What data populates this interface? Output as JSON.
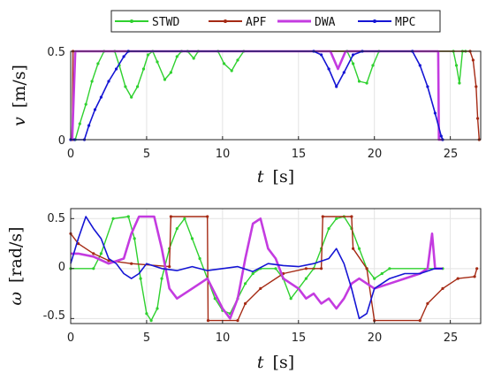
{
  "chart_data": [
    {
      "type": "line",
      "xlabel_var": "t",
      "xlabel_unit": "[s]",
      "ylabel_var": "v",
      "ylabel_unit": "[m/s]",
      "xlim": [
        0,
        27
      ],
      "ylim": [
        0,
        0.5
      ],
      "xticks": [
        "0",
        "5",
        "10",
        "15",
        "20",
        "25"
      ],
      "yticks": [
        "0",
        "0.5"
      ],
      "grid": true,
      "legend": {
        "position": "top",
        "entries": [
          "STWD",
          "APF",
          "DWA",
          "MPC"
        ]
      },
      "series": [
        {
          "name": "STWD",
          "color": "#2fd12f",
          "marker": "dot",
          "points": [
            [
              0,
              0
            ],
            [
              0.3,
              0
            ],
            [
              0.6,
              0.09
            ],
            [
              1.0,
              0.2
            ],
            [
              1.4,
              0.33
            ],
            [
              1.8,
              0.43
            ],
            [
              2.2,
              0.5
            ],
            [
              2.9,
              0.5
            ],
            [
              3.2,
              0.42
            ],
            [
              3.6,
              0.3
            ],
            [
              4.0,
              0.24
            ],
            [
              4.4,
              0.3
            ],
            [
              4.8,
              0.4
            ],
            [
              5.1,
              0.48
            ],
            [
              5.4,
              0.5
            ],
            [
              5.7,
              0.44
            ],
            [
              6.2,
              0.34
            ],
            [
              6.6,
              0.38
            ],
            [
              7.0,
              0.47
            ],
            [
              7.3,
              0.5
            ],
            [
              7.7,
              0.5
            ],
            [
              8.1,
              0.46
            ],
            [
              8.4,
              0.5
            ],
            [
              9.7,
              0.5
            ],
            [
              10.1,
              0.43
            ],
            [
              10.6,
              0.39
            ],
            [
              11.0,
              0.45
            ],
            [
              11.4,
              0.5
            ],
            [
              18.2,
              0.5
            ],
            [
              18.6,
              0.43
            ],
            [
              19.0,
              0.33
            ],
            [
              19.5,
              0.32
            ],
            [
              19.9,
              0.42
            ],
            [
              20.3,
              0.5
            ],
            [
              25.2,
              0.5
            ],
            [
              25.4,
              0.42
            ],
            [
              25.6,
              0.32
            ],
            [
              25.8,
              0.5
            ],
            [
              26.0,
              0.5
            ]
          ]
        },
        {
          "name": "APF",
          "color": "#a52a14",
          "marker": "dot",
          "points": [
            [
              0,
              0
            ],
            [
              0.1,
              0
            ],
            [
              0.15,
              0.5
            ],
            [
              26.3,
              0.5
            ],
            [
              26.5,
              0.45
            ],
            [
              26.7,
              0.3
            ],
            [
              26.8,
              0.12
            ],
            [
              26.9,
              0
            ]
          ]
        },
        {
          "name": "DWA",
          "color": "#c43be0",
          "marker": "none",
          "points": [
            [
              0,
              0
            ],
            [
              0.1,
              0
            ],
            [
              0.3,
              0.5
            ],
            [
              17.1,
              0.5
            ],
            [
              17.6,
              0.4
            ],
            [
              18.1,
              0.5
            ],
            [
              24.2,
              0.5
            ],
            [
              24.25,
              0
            ],
            [
              24.5,
              0
            ]
          ]
        },
        {
          "name": "MPC",
          "color": "#1515d4",
          "marker": "dot",
          "points": [
            [
              0,
              0
            ],
            [
              0.25,
              0
            ],
            [
              0.9,
              0
            ],
            [
              1.2,
              0.08
            ],
            [
              1.6,
              0.17
            ],
            [
              2.0,
              0.24
            ],
            [
              2.5,
              0.33
            ],
            [
              3.0,
              0.4
            ],
            [
              3.5,
              0.47
            ],
            [
              3.8,
              0.5
            ],
            [
              16.0,
              0.5
            ],
            [
              16.5,
              0.48
            ],
            [
              17.0,
              0.4
            ],
            [
              17.5,
              0.3
            ],
            [
              18.0,
              0.38
            ],
            [
              18.6,
              0.48
            ],
            [
              19.2,
              0.5
            ],
            [
              22.5,
              0.5
            ],
            [
              23.0,
              0.42
            ],
            [
              23.5,
              0.3
            ],
            [
              24.0,
              0.15
            ],
            [
              24.4,
              0.02
            ],
            [
              24.5,
              0
            ]
          ]
        }
      ]
    },
    {
      "type": "line",
      "xlabel_var": "t",
      "xlabel_unit": "[s]",
      "ylabel_var": "ω",
      "ylabel_unit": "[rad/s]",
      "xlim": [
        0,
        27
      ],
      "ylim": [
        -0.55,
        0.6
      ],
      "xticks": [
        "0",
        "5",
        "10",
        "15",
        "20",
        "25"
      ],
      "yticks": [
        "0.5",
        "0",
        "-0.5"
      ],
      "grid": true,
      "series": [
        {
          "name": "STWD",
          "color": "#2fd12f",
          "marker": "dot",
          "points": [
            [
              0,
              0
            ],
            [
              1.5,
              0
            ],
            [
              2.0,
              0.15
            ],
            [
              2.8,
              0.5
            ],
            [
              3.8,
              0.52
            ],
            [
              4.2,
              0.3
            ],
            [
              4.6,
              -0.1
            ],
            [
              5.0,
              -0.45
            ],
            [
              5.3,
              -0.52
            ],
            [
              5.7,
              -0.4
            ],
            [
              6.0,
              -0.1
            ],
            [
              6.5,
              0.2
            ],
            [
              7.0,
              0.4
            ],
            [
              7.5,
              0.5
            ],
            [
              8.0,
              0.3
            ],
            [
              8.5,
              0.1
            ],
            [
              9.0,
              -0.1
            ],
            [
              9.5,
              -0.3
            ],
            [
              10.0,
              -0.42
            ],
            [
              10.5,
              -0.45
            ],
            [
              11.0,
              -0.3
            ],
            [
              11.5,
              -0.15
            ],
            [
              12.0,
              -0.05
            ],
            [
              12.5,
              0.0
            ],
            [
              13.5,
              0.0
            ],
            [
              14.0,
              -0.1
            ],
            [
              14.5,
              -0.3
            ],
            [
              15.0,
              -0.2
            ],
            [
              15.5,
              -0.1
            ],
            [
              16.0,
              0.0
            ],
            [
              16.5,
              0.2
            ],
            [
              17.0,
              0.4
            ],
            [
              17.5,
              0.5
            ],
            [
              18.0,
              0.52
            ],
            [
              18.5,
              0.4
            ],
            [
              19.0,
              0.2
            ],
            [
              19.5,
              0.0
            ],
            [
              20.0,
              -0.1
            ],
            [
              20.5,
              -0.05
            ],
            [
              21.0,
              0.0
            ],
            [
              24.5,
              0.0
            ]
          ]
        },
        {
          "name": "APF",
          "color": "#a52a14",
          "marker": "dot",
          "points": [
            [
              0,
              0.35
            ],
            [
              0.5,
              0.25
            ],
            [
              1.5,
              0.15
            ],
            [
              2.5,
              0.08
            ],
            [
              4,
              0.05
            ],
            [
              6.5,
              0.02
            ],
            [
              6.6,
              0.52
            ],
            [
              9,
              0.52
            ],
            [
              9.05,
              -0.52
            ],
            [
              11,
              -0.52
            ],
            [
              11.5,
              -0.35
            ],
            [
              12.5,
              -0.2
            ],
            [
              14,
              -0.05
            ],
            [
              15.5,
              0.0
            ],
            [
              16.5,
              0.0
            ],
            [
              16.6,
              0.52
            ],
            [
              18.5,
              0.52
            ],
            [
              18.6,
              0.2
            ],
            [
              19.5,
              0.0
            ],
            [
              20,
              -0.52
            ],
            [
              23,
              -0.52
            ],
            [
              23.5,
              -0.35
            ],
            [
              24.5,
              -0.2
            ],
            [
              25.5,
              -0.1
            ],
            [
              26.6,
              -0.08
            ],
            [
              26.75,
              0.0
            ]
          ]
        },
        {
          "name": "DWA",
          "color": "#c43be0",
          "marker": "none",
          "points": [
            [
              0,
              0.15
            ],
            [
              0.5,
              0.15
            ],
            [
              1.5,
              0.12
            ],
            [
              2.5,
              0.05
            ],
            [
              3.5,
              0.1
            ],
            [
              4.0,
              0.35
            ],
            [
              4.5,
              0.52
            ],
            [
              5.5,
              0.52
            ],
            [
              6.0,
              0.2
            ],
            [
              6.5,
              -0.2
            ],
            [
              7.0,
              -0.3
            ],
            [
              8.0,
              -0.2
            ],
            [
              9.0,
              -0.1
            ],
            [
              9.5,
              -0.25
            ],
            [
              10.0,
              -0.4
            ],
            [
              10.5,
              -0.5
            ],
            [
              11.0,
              -0.3
            ],
            [
              11.5,
              0.1
            ],
            [
              12.0,
              0.45
            ],
            [
              12.5,
              0.5
            ],
            [
              13.0,
              0.2
            ],
            [
              13.5,
              0.1
            ],
            [
              14.0,
              -0.1
            ],
            [
              15.0,
              -0.2
            ],
            [
              15.5,
              -0.3
            ],
            [
              16.0,
              -0.25
            ],
            [
              16.5,
              -0.35
            ],
            [
              17.0,
              -0.3
            ],
            [
              17.5,
              -0.4
            ],
            [
              18.0,
              -0.3
            ],
            [
              18.5,
              -0.15
            ],
            [
              19.0,
              -0.1
            ],
            [
              20.0,
              -0.2
            ],
            [
              21.0,
              -0.15
            ],
            [
              22.0,
              -0.1
            ],
            [
              23.0,
              -0.05
            ],
            [
              23.5,
              0.0
            ],
            [
              23.8,
              0.35
            ],
            [
              24.0,
              0.0
            ],
            [
              24.5,
              0.0
            ]
          ]
        },
        {
          "name": "MPC",
          "color": "#1515d4",
          "marker": "none",
          "points": [
            [
              0,
              0.05
            ],
            [
              0.5,
              0.3
            ],
            [
              1.0,
              0.52
            ],
            [
              1.5,
              0.4
            ],
            [
              2.0,
              0.3
            ],
            [
              2.5,
              0.1
            ],
            [
              3.0,
              0.05
            ],
            [
              3.5,
              -0.05
            ],
            [
              4.0,
              -0.1
            ],
            [
              4.5,
              -0.05
            ],
            [
              5.0,
              0.05
            ],
            [
              6.0,
              0.0
            ],
            [
              7.0,
              -0.02
            ],
            [
              8.0,
              0.02
            ],
            [
              9.0,
              -0.02
            ],
            [
              10.0,
              0.0
            ],
            [
              11.0,
              0.02
            ],
            [
              12.0,
              -0.03
            ],
            [
              13.0,
              0.05
            ],
            [
              14.0,
              0.03
            ],
            [
              15.0,
              0.02
            ],
            [
              16.0,
              0.05
            ],
            [
              17.0,
              0.1
            ],
            [
              17.5,
              0.2
            ],
            [
              18.0,
              0.05
            ],
            [
              18.5,
              -0.2
            ],
            [
              19.0,
              -0.5
            ],
            [
              19.5,
              -0.45
            ],
            [
              20.0,
              -0.2
            ],
            [
              21.0,
              -0.1
            ],
            [
              22.0,
              -0.05
            ],
            [
              23.0,
              -0.05
            ],
            [
              24.0,
              0.0
            ],
            [
              24.5,
              0.0
            ]
          ]
        }
      ]
    }
  ]
}
